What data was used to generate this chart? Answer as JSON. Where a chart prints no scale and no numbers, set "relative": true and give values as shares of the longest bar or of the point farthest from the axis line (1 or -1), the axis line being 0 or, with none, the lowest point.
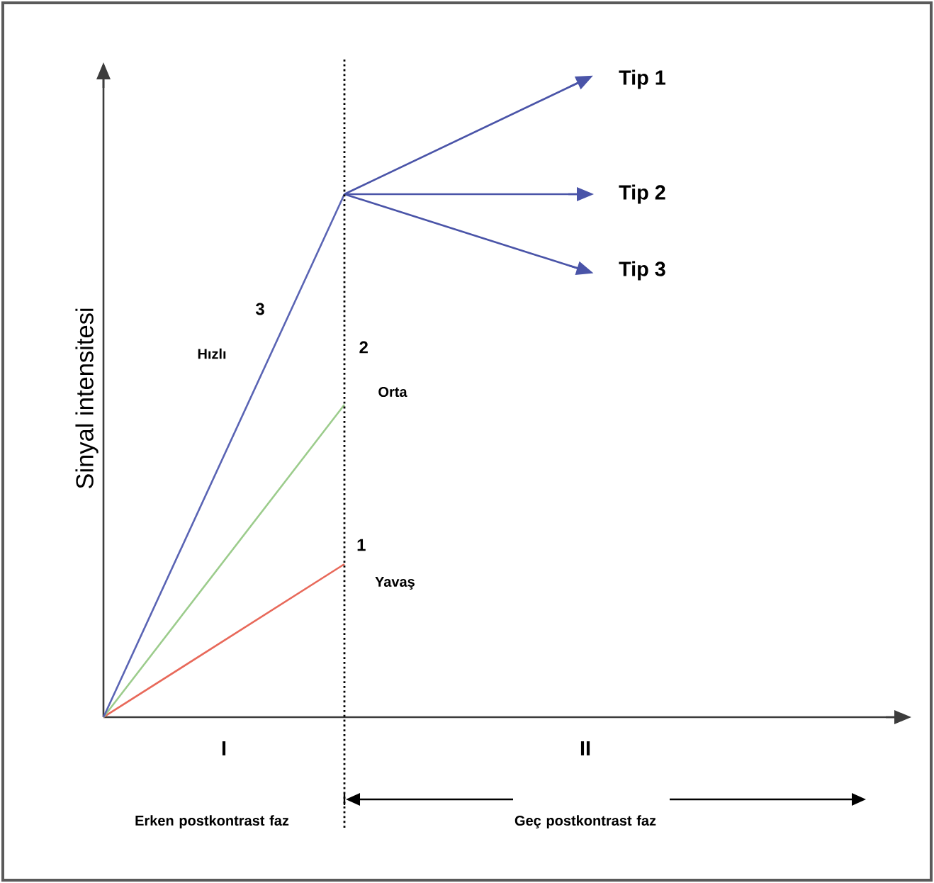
{
  "chart_data": {
    "type": "line",
    "relative": true,
    "ylabel": "Sinyal intensitesi",
    "categories": [
      null,
      null,
      null
    ],
    "legend": "right",
    "line_style": "solid",
    "series": [
      {
        "color": "#e8695a",
        "values": [
          0,
          0.24,
          null
        ]
      },
      {
        "color": "#9ccc8c",
        "values": [
          0,
          0.49,
          null
        ]
      },
      {
        "color": "#5a64b4",
        "values": [
          0,
          0.82,
          null
        ]
      },
      {
        "name": "Tip 1",
        "color": "#4a54a8",
        "values": [
          null,
          0.82,
          1
        ]
      },
      {
        "name": "Tip 2",
        "color": "#4a54a8",
        "values": [
          null,
          0.82,
          0.82
        ]
      },
      {
        "name": "Tip 3",
        "color": "#4a54a8",
        "values": [
          null,
          0.82,
          0.7
        ]
      }
    ],
    "annotations": [
      "I",
      "II",
      "3",
      "Hızlı",
      "2",
      "Orta",
      "1",
      "Yavaş",
      "Erken postkontrast faz",
      "Geç postkontrast faz"
    ]
  }
}
